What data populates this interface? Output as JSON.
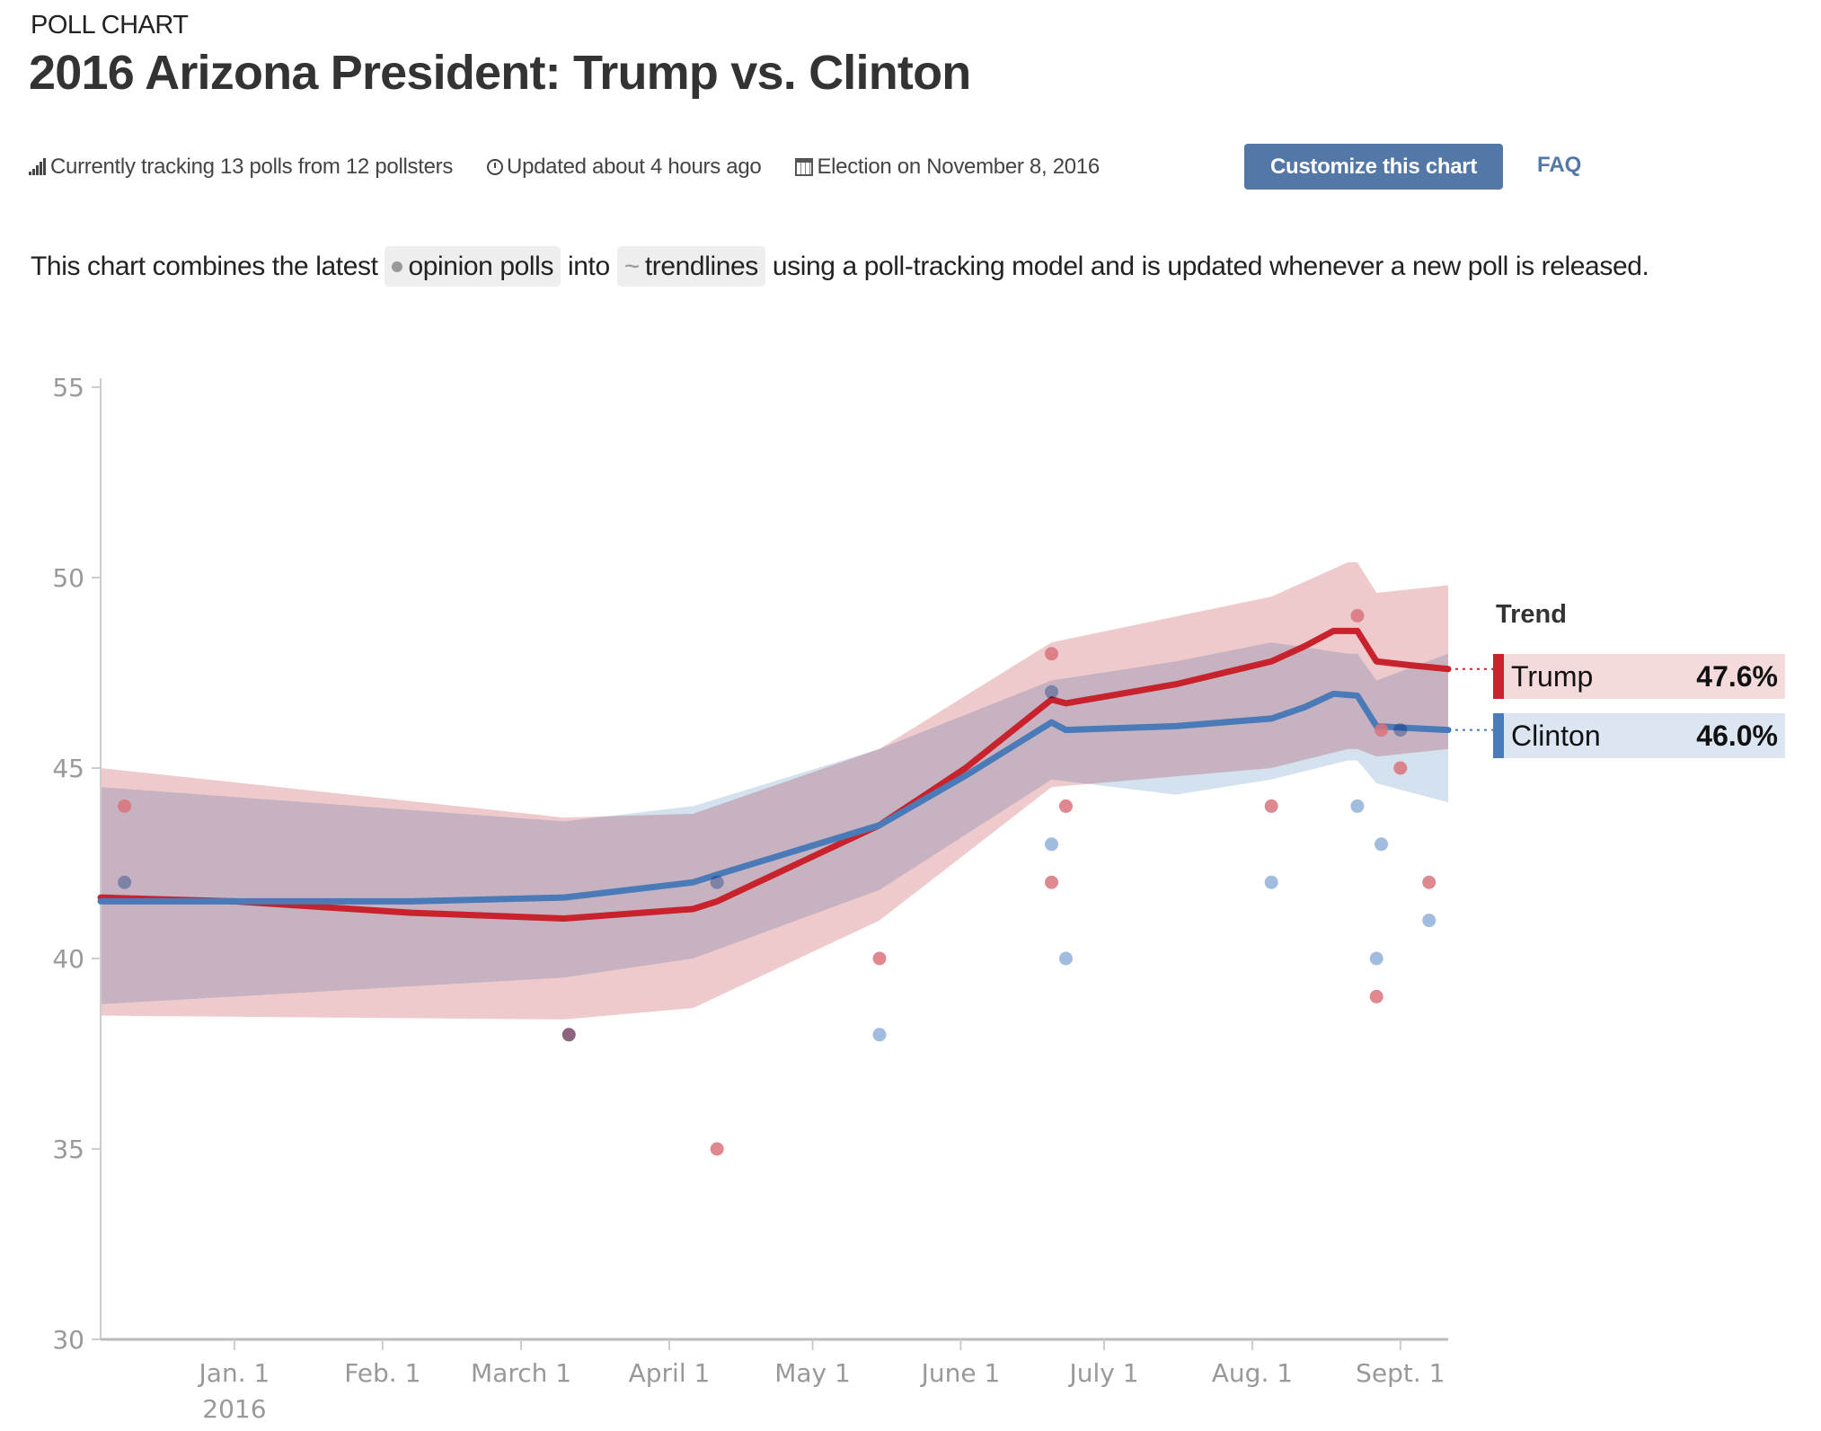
{
  "header": {
    "kicker": "POLL CHART",
    "title": "2016 Arizona President: Trump vs. Clinton"
  },
  "meta": {
    "tracking": "Currently tracking 13 polls from 12 pollsters",
    "updated": "Updated about 4 hours ago",
    "election": "Election on November 8, 2016",
    "customize_label": "Customize this chart",
    "faq_label": "FAQ",
    "icons": [
      "signal-bars-icon",
      "clock-icon",
      "calendar-icon"
    ]
  },
  "description": {
    "before": "This chart combines the latest ",
    "chip1": "opinion polls",
    "middle": " into ",
    "chip2": "trendlines",
    "after": " using a poll-tracking model and is updated whenever a new poll is released."
  },
  "legend": {
    "title": "Trend",
    "items": [
      {
        "name": "Trump",
        "value": "47.6%",
        "color": "#c8232c",
        "bg": "#f5dadb"
      },
      {
        "name": "Clinton",
        "value": "46.0%",
        "color": "#4a7ab8",
        "bg": "#dce6f2"
      }
    ]
  },
  "colors": {
    "trump": "#c8232c",
    "clinton": "#4a7ab8",
    "trump_band": "#e8b4b8",
    "clinton_band": "#b7cde4",
    "trump_dot": "#d9737b",
    "clinton_dot": "#8fb0d8",
    "axis": "#cccccc",
    "button": "#5377a7"
  },
  "chart_data": {
    "type": "line",
    "title": "2016 Arizona President: Trump vs. Clinton",
    "xlabel": "",
    "ylabel": "",
    "x_unit": "days since Jan. 1, 2016",
    "xlim": [
      -28,
      254
    ],
    "ylim": [
      30,
      55
    ],
    "yticks": [
      30,
      35,
      40,
      45,
      50,
      55
    ],
    "xticks": [
      {
        "day": 0,
        "label": "Jan. 1",
        "sublabel": "2016"
      },
      {
        "day": 31,
        "label": "Feb. 1"
      },
      {
        "day": 60,
        "label": "March 1"
      },
      {
        "day": 91,
        "label": "April 1"
      },
      {
        "day": 121,
        "label": "May 1"
      },
      {
        "day": 152,
        "label": "June 1"
      },
      {
        "day": 182,
        "label": "July 1"
      },
      {
        "day": 213,
        "label": "Aug. 1"
      },
      {
        "day": 244,
        "label": "Sept. 1"
      }
    ],
    "grid": false,
    "legend_position": "right",
    "series": [
      {
        "name": "Trump",
        "x": [
          -28,
          0,
          37,
          69,
          96,
          101,
          135,
          153,
          171,
          174,
          197,
          217,
          224,
          230,
          235,
          239,
          246,
          254
        ],
        "trend": [
          41.6,
          41.5,
          41.2,
          41.05,
          41.3,
          41.5,
          43.5,
          45.0,
          46.8,
          46.7,
          47.2,
          47.8,
          48.2,
          48.6,
          48.6,
          47.8,
          47.7,
          47.6
        ],
        "band_x": [
          -28,
          69,
          96,
          135,
          171,
          217,
          233,
          235,
          239,
          254
        ],
        "band_upper": [
          45.0,
          43.7,
          43.8,
          45.5,
          48.3,
          49.5,
          50.4,
          50.4,
          49.6,
          49.8
        ],
        "band_lower": [
          38.5,
          38.4,
          38.7,
          41.0,
          44.5,
          45.0,
          45.5,
          45.5,
          45.3,
          45.5
        ]
      },
      {
        "name": "Clinton",
        "x": [
          -28,
          0,
          37,
          69,
          96,
          101,
          135,
          153,
          171,
          174,
          197,
          217,
          224,
          230,
          235,
          239,
          246,
          254
        ],
        "trend": [
          41.5,
          41.5,
          41.5,
          41.6,
          42.0,
          42.2,
          43.5,
          44.8,
          46.2,
          46.0,
          46.1,
          46.3,
          46.6,
          46.95,
          46.9,
          46.1,
          46.05,
          46.0
        ],
        "band_x": [
          -28,
          69,
          96,
          135,
          171,
          197,
          217,
          233,
          235,
          239,
          254
        ],
        "band_upper": [
          44.5,
          43.6,
          44.0,
          45.5,
          47.3,
          47.8,
          48.3,
          48.0,
          48.0,
          47.3,
          48.0
        ],
        "band_lower": [
          38.8,
          39.5,
          40.0,
          41.8,
          44.7,
          44.3,
          44.7,
          45.2,
          45.2,
          44.6,
          44.1
        ]
      }
    ],
    "polls": [
      {
        "day": -23,
        "Trump": 44,
        "Clinton": 42
      },
      {
        "day": 70,
        "Trump": 38,
        "Clinton": 38
      },
      {
        "day": 101,
        "Trump": 35,
        "Clinton": 42
      },
      {
        "day": 135,
        "Trump": 40,
        "Clinton": 38
      },
      {
        "day": 171,
        "Trump": 48,
        "Clinton": 47
      },
      {
        "day": 171,
        "Trump": 42,
        "Clinton": 43
      },
      {
        "day": 174,
        "Trump": 44,
        "Clinton": 40
      },
      {
        "day": 217,
        "Trump": 44,
        "Clinton": 42
      },
      {
        "day": 235,
        "Trump": 49,
        "Clinton": 44
      },
      {
        "day": 239,
        "Trump": 39,
        "Clinton": 40
      },
      {
        "day": 240,
        "Trump": 46,
        "Clinton": 43
      },
      {
        "day": 244,
        "Trump": 45,
        "Clinton": 46
      },
      {
        "day": 250,
        "Trump": 42,
        "Clinton": 41
      }
    ],
    "latest": {
      "Trump": 47.6,
      "Clinton": 46.0
    }
  }
}
